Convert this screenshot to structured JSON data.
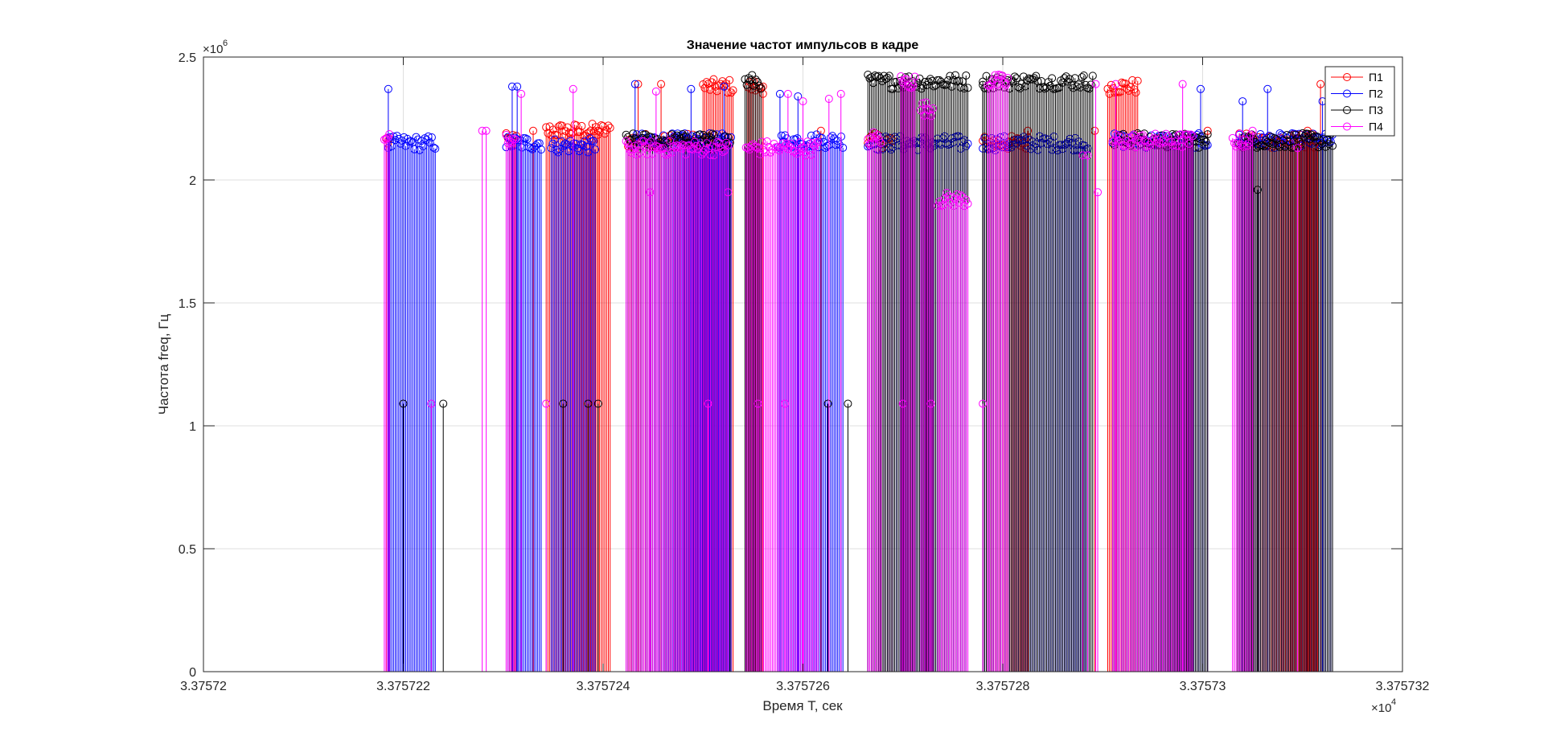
{
  "chart_data": {
    "type": "stem",
    "title": "Значение частот импульсов в кадре",
    "xlabel": "Время T, сек",
    "ylabel": "Частота freq, Гц",
    "x_tick_labels": [
      "3.37572",
      "3.375722",
      "3.375724",
      "3.375726",
      "3.375728",
      "3.37573",
      "3.375732"
    ],
    "x_exponent_label": "×10",
    "x_exponent_power": "4",
    "y_tick_labels": [
      "0",
      "0.5",
      "1",
      "1.5",
      "2",
      "2.5"
    ],
    "y_exponent_label": "×10",
    "y_exponent_power": "6",
    "xlim": [
      33757.2,
      33757.32
    ],
    "ylim": [
      0,
      2500000
    ],
    "x_ticks": [
      33757.2,
      33757.22,
      33757.24,
      33757.26,
      33757.28,
      33757.3,
      33757.32
    ],
    "y_ticks": [
      0,
      500000,
      1000000,
      1500000,
      2000000,
      2500000
    ],
    "grid": true,
    "legend_position": "top-right",
    "series": [
      {
        "name": "П1",
        "color": "#ff0000",
        "bursts": [
          {
            "start": 33757.2183,
            "end": 33757.2186,
            "value": 2160000
          },
          {
            "start": 33757.2303,
            "end": 33757.2313,
            "value": 2160000
          },
          {
            "start": 33757.2343,
            "end": 33757.2407,
            "value": 2200000
          },
          {
            "start": 33757.2425,
            "end": 33757.2495,
            "value": 2160000
          },
          {
            "start": 33757.25,
            "end": 33757.253,
            "value": 2380000
          },
          {
            "start": 33757.2545,
            "end": 33757.256,
            "value": 2380000
          },
          {
            "start": 33757.2665,
            "end": 33757.269,
            "value": 2160000
          },
          {
            "start": 33757.278,
            "end": 33757.2825,
            "value": 2150000
          },
          {
            "start": 33757.2905,
            "end": 33757.2935,
            "value": 2380000
          },
          {
            "start": 33757.3035,
            "end": 33757.3115,
            "value": 2160000
          }
        ],
        "singles": [
          {
            "x": 33757.233,
            "value": 2200000
          },
          {
            "x": 33757.2395,
            "value": 2200000
          },
          {
            "x": 33757.2435,
            "value": 2390000
          },
          {
            "x": 33757.2458,
            "value": 2390000
          },
          {
            "x": 33757.256,
            "value": 2380000
          },
          {
            "x": 33757.2618,
            "value": 2200000
          },
          {
            "x": 33757.2825,
            "value": 2200000
          },
          {
            "x": 33757.2892,
            "value": 2200000
          },
          {
            "x": 33757.3005,
            "value": 2200000
          },
          {
            "x": 33757.3105,
            "value": 2200000
          },
          {
            "x": 33757.3118,
            "value": 2390000
          }
        ]
      },
      {
        "name": "П2",
        "color": "#0000ff",
        "bursts": [
          {
            "start": 33757.2185,
            "end": 33757.2232,
            "value": 2150000
          },
          {
            "start": 33757.2303,
            "end": 33757.2338,
            "value": 2150000
          },
          {
            "start": 33757.2348,
            "end": 33757.2392,
            "value": 2140000
          },
          {
            "start": 33757.243,
            "end": 33757.2528,
            "value": 2160000
          },
          {
            "start": 33757.2575,
            "end": 33757.264,
            "value": 2160000
          },
          {
            "start": 33757.2665,
            "end": 33757.2765,
            "value": 2150000
          },
          {
            "start": 33757.278,
            "end": 33757.2885,
            "value": 2150000
          },
          {
            "start": 33757.291,
            "end": 33757.3005,
            "value": 2160000
          },
          {
            "start": 33757.3035,
            "end": 33757.313,
            "value": 2160000
          }
        ],
        "singles": [
          {
            "x": 33757.2185,
            "value": 2370000
          },
          {
            "x": 33757.2309,
            "value": 2380000
          },
          {
            "x": 33757.2314,
            "value": 2380000
          },
          {
            "x": 33757.2432,
            "value": 2390000
          },
          {
            "x": 33757.2488,
            "value": 2370000
          },
          {
            "x": 33757.2521,
            "value": 2380000
          },
          {
            "x": 33757.2577,
            "value": 2350000
          },
          {
            "x": 33757.2595,
            "value": 2340000
          },
          {
            "x": 33757.2998,
            "value": 2370000
          },
          {
            "x": 33757.304,
            "value": 2320000
          },
          {
            "x": 33757.3065,
            "value": 2370000
          },
          {
            "x": 33757.312,
            "value": 2320000
          }
        ]
      },
      {
        "name": "П3",
        "color": "#000000",
        "bursts": [
          {
            "start": 33757.2423,
            "end": 33757.2527,
            "value": 2160000
          },
          {
            "start": 33757.2542,
            "end": 33757.2558,
            "value": 2400000
          },
          {
            "start": 33757.2665,
            "end": 33757.2765,
            "value": 2400000
          },
          {
            "start": 33757.278,
            "end": 33757.289,
            "value": 2400000
          },
          {
            "start": 33757.291,
            "end": 33757.3005,
            "value": 2160000
          },
          {
            "start": 33757.3035,
            "end": 33757.313,
            "value": 2160000
          }
        ],
        "singles": [
          {
            "x": 33757.22,
            "value": 1090000
          },
          {
            "x": 33757.224,
            "value": 1090000
          },
          {
            "x": 33757.236,
            "value": 1090000
          },
          {
            "x": 33757.2385,
            "value": 1090000
          },
          {
            "x": 33757.2395,
            "value": 1090000
          },
          {
            "x": 33757.2625,
            "value": 1090000
          },
          {
            "x": 33757.2645,
            "value": 1090000
          },
          {
            "x": 33757.278,
            "value": 2400000
          },
          {
            "x": 33757.2935,
            "value": 2190000
          },
          {
            "x": 33757.3055,
            "value": 1960000
          }
        ]
      },
      {
        "name": "П4",
        "color": "#ff00ff",
        "bursts": [
          {
            "start": 33757.2181,
            "end": 33757.2186,
            "value": 2160000
          },
          {
            "start": 33757.2303,
            "end": 33757.2312,
            "value": 2160000
          },
          {
            "start": 33757.2423,
            "end": 33757.2525,
            "value": 2130000
          },
          {
            "start": 33757.2543,
            "end": 33757.2615,
            "value": 2130000
          },
          {
            "start": 33757.2665,
            "end": 33757.2678,
            "value": 2170000
          },
          {
            "start": 33757.2698,
            "end": 33757.2712,
            "value": 2400000
          },
          {
            "start": 33757.2718,
            "end": 33757.273,
            "value": 2290000
          },
          {
            "start": 33757.2735,
            "end": 33757.2765,
            "value": 1920000
          },
          {
            "start": 33757.2785,
            "end": 33757.2805,
            "value": 2400000
          },
          {
            "start": 33757.291,
            "end": 33757.299,
            "value": 2160000
          },
          {
            "start": 33757.303,
            "end": 33757.3048,
            "value": 2160000
          }
        ],
        "singles": [
          {
            "x": 33757.2279,
            "value": 2200000
          },
          {
            "x": 33757.2283,
            "value": 2200000
          },
          {
            "x": 33757.2318,
            "value": 2350000
          },
          {
            "x": 33757.237,
            "value": 2370000
          },
          {
            "x": 33757.2447,
            "value": 1950000
          },
          {
            "x": 33757.2453,
            "value": 2360000
          },
          {
            "x": 33757.2525,
            "value": 1950000
          },
          {
            "x": 33757.2585,
            "value": 2350000
          },
          {
            "x": 33757.26,
            "value": 2320000
          },
          {
            "x": 33757.2626,
            "value": 2330000
          },
          {
            "x": 33757.2638,
            "value": 2350000
          },
          {
            "x": 33757.288,
            "value": 2100000
          },
          {
            "x": 33757.2885,
            "value": 2100000
          },
          {
            "x": 33757.2895,
            "value": 1950000
          },
          {
            "x": 33757.2893,
            "value": 2390000
          },
          {
            "x": 33757.2913,
            "value": 2390000
          },
          {
            "x": 33757.298,
            "value": 2390000
          },
          {
            "x": 33757.305,
            "value": 2200000
          },
          {
            "x": 33757.3095,
            "value": 2130000
          },
          {
            "x": 33757.2228,
            "value": 1090000
          },
          {
            "x": 33757.2343,
            "value": 1090000
          },
          {
            "x": 33757.2505,
            "value": 1090000
          },
          {
            "x": 33757.2555,
            "value": 1090000
          },
          {
            "x": 33757.2582,
            "value": 1090000
          },
          {
            "x": 33757.27,
            "value": 1090000
          },
          {
            "x": 33757.2728,
            "value": 1090000
          },
          {
            "x": 33757.278,
            "value": 1090000
          }
        ]
      }
    ]
  }
}
